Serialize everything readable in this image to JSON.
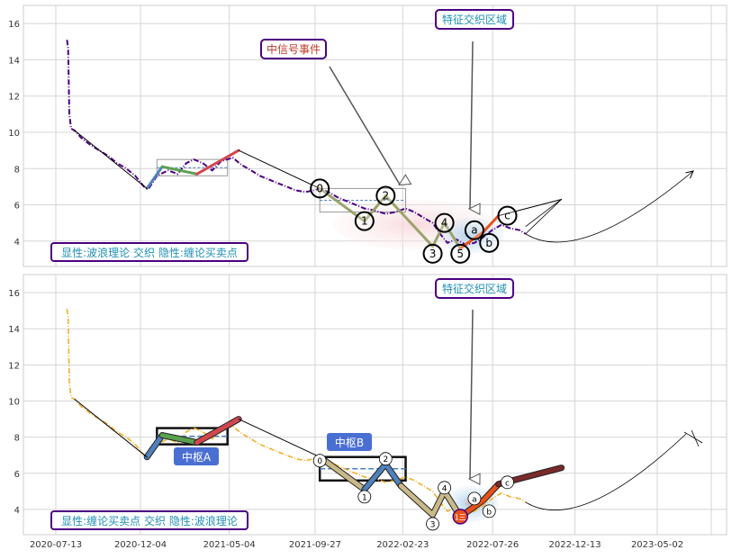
{
  "chart_data": [
    {
      "type": "line",
      "panel": "top",
      "title": "",
      "xlabel": "",
      "ylabel": "",
      "ylim": [
        2.6,
        17.0
      ],
      "yticks": [
        4,
        6,
        8,
        10,
        12,
        14,
        16
      ],
      "grid": true,
      "mode_text": "显性:波浪理论 交织 隐性:缠论买卖点",
      "annotations": [
        {
          "text": "中信号事件",
          "color": "#c0392b",
          "border": "#4b0082"
        },
        {
          "text": "特征交织区域",
          "color": "#1f8fb3",
          "border": "#4b0082"
        }
      ],
      "price_series": {
        "color": "#4b0082",
        "style": "dash-dot",
        "points": [
          [
            "2020-08-01",
            15.1
          ],
          [
            "2020-08-03",
            14.6
          ],
          [
            "2020-08-05",
            11.0
          ],
          [
            "2020-08-08",
            10.2
          ],
          [
            "2020-08-14",
            10.1
          ],
          [
            "2020-08-25",
            9.7
          ],
          [
            "2020-09-10",
            9.3
          ],
          [
            "2020-09-25",
            9.0
          ],
          [
            "2020-10-10",
            8.7
          ],
          [
            "2020-10-25",
            8.3
          ],
          [
            "2020-11-10",
            8.0
          ],
          [
            "2020-11-25",
            7.6
          ],
          [
            "2020-12-10",
            7.0
          ],
          [
            "2020-12-18",
            6.9
          ],
          [
            "2021-01-01",
            7.6
          ],
          [
            "2021-01-20",
            7.9
          ],
          [
            "2021-02-05",
            7.7
          ],
          [
            "2021-02-20",
            8.3
          ],
          [
            "2021-03-05",
            8.5
          ],
          [
            "2021-03-20",
            8.3
          ],
          [
            "2021-04-05",
            7.9
          ],
          [
            "2021-04-20",
            8.4
          ],
          [
            "2021-05-10",
            8.6
          ],
          [
            "2021-05-25",
            8.2
          ],
          [
            "2021-06-10",
            7.9
          ],
          [
            "2021-06-25",
            7.6
          ],
          [
            "2021-07-10",
            7.4
          ],
          [
            "2021-07-25",
            7.2
          ],
          [
            "2021-08-10",
            7.0
          ],
          [
            "2021-08-25",
            6.8
          ],
          [
            "2021-09-10",
            6.7
          ],
          [
            "2021-09-25",
            6.8
          ],
          [
            "2021-10-05",
            6.9
          ],
          [
            "2021-10-20",
            6.7
          ],
          [
            "2021-11-05",
            6.4
          ],
          [
            "2021-11-20",
            6.2
          ],
          [
            "2021-12-05",
            6.0
          ],
          [
            "2021-12-20",
            5.8
          ],
          [
            "2022-01-05",
            5.7
          ],
          [
            "2022-01-25",
            5.5
          ],
          [
            "2022-02-10",
            5.6
          ],
          [
            "2022-02-28",
            5.8
          ],
          [
            "2022-03-15",
            5.6
          ],
          [
            "2022-03-30",
            5.3
          ],
          [
            "2022-04-15",
            5.0
          ],
          [
            "2022-04-30",
            4.3
          ],
          [
            "2022-05-10",
            3.9
          ],
          [
            "2022-05-25",
            4.1
          ],
          [
            "2022-06-10",
            3.8
          ],
          [
            "2022-06-25",
            3.9
          ],
          [
            "2022-07-10",
            4.2
          ],
          [
            "2022-07-25",
            4.6
          ],
          [
            "2022-08-10",
            4.9
          ],
          [
            "2022-08-25",
            4.7
          ],
          [
            "2022-09-10",
            4.6
          ],
          [
            "2022-09-20",
            4.4
          ]
        ]
      },
      "pivots": [
        {
          "x1": "2021-01-01",
          "x2": "2021-05-01",
          "low": 7.6,
          "high": 8.5
        },
        {
          "x1": "2021-10-05",
          "x2": "2022-02-28",
          "low": 5.6,
          "high": 6.9
        }
      ],
      "wave_segments": [
        {
          "color": "#4f81bd",
          "points": [
            [
              "2020-12-15",
              6.9
            ],
            [
              "2021-01-10",
              8.1
            ]
          ]
        },
        {
          "color": "#59a14f",
          "points": [
            [
              "2021-01-10",
              8.1
            ],
            [
              "2021-03-10",
              7.7
            ]
          ]
        },
        {
          "color": "#d0474f",
          "points": [
            [
              "2021-03-10",
              7.7
            ],
            [
              "2021-05-20",
              9.0
            ]
          ]
        },
        {
          "color": "#000000",
          "points": [
            [
              "2020-08-14",
              10.1
            ],
            [
              "2020-12-15",
              6.9
            ]
          ]
        },
        {
          "color": "#000000",
          "points": [
            [
              "2021-05-20",
              9.0
            ],
            [
              "2021-10-05",
              6.9
            ]
          ]
        },
        {
          "color": "#9aa36b",
          "points": [
            [
              "2021-10-05",
              6.9
            ],
            [
              "2021-12-20",
              5.1
            ],
            [
              "2022-01-25",
              6.5
            ],
            [
              "2022-04-15",
              3.7
            ],
            [
              "2022-05-05",
              5.0
            ],
            [
              "2022-06-01",
              3.6
            ]
          ]
        },
        {
          "color": "#e8501a",
          "points": [
            [
              "2022-06-01",
              3.6
            ],
            [
              "2022-07-10",
              4.5
            ],
            [
              "2022-08-05",
              5.4
            ]
          ]
        },
        {
          "color": "#000000",
          "points": [
            [
              "2022-08-05",
              5.4
            ],
            [
              "2022-11-20",
              6.3
            ]
          ]
        }
      ],
      "wave_labels": [
        {
          "label": "0",
          "x": "2021-10-05",
          "y": 6.9
        },
        {
          "label": "1",
          "x": "2021-12-20",
          "y": 5.1
        },
        {
          "label": "2",
          "x": "2022-01-25",
          "y": 6.5
        },
        {
          "label": "3",
          "x": "2022-04-15",
          "y": 3.3
        },
        {
          "label": "4",
          "x": "2022-05-05",
          "y": 5.0
        },
        {
          "label": "5",
          "x": "2022-06-01",
          "y": 3.3
        },
        {
          "label": "a",
          "x": "2022-06-25",
          "y": 4.6
        },
        {
          "label": "b",
          "x": "2022-07-20",
          "y": 3.9
        },
        {
          "label": "c",
          "x": "2022-08-20",
          "y": 5.4
        }
      ]
    },
    {
      "type": "line",
      "panel": "bottom",
      "title": "",
      "xlabel": "",
      "ylabel": "",
      "ylim": [
        2.6,
        17.0
      ],
      "yticks": [
        4,
        6,
        8,
        10,
        12,
        14,
        16
      ],
      "xticks": [
        "2020-07-13",
        "2020-12-04",
        "2021-05-04",
        "2021-09-27",
        "2022-02-23",
        "2022-07-26",
        "2022-12-13",
        "2023-05-02"
      ],
      "grid": true,
      "mode_text": "显性:缠论买卖点 交织 隐性:波浪理论",
      "annotations": [
        {
          "text": "特征交织区域",
          "color": "#1f8fb3",
          "border": "#4b0082"
        }
      ],
      "pivot_labels": [
        "中枢A",
        "中枢B"
      ],
      "buy_sell_point": "1三",
      "price_series": {
        "color": "#f0b030",
        "style": "dash-dot",
        "points": [
          [
            "2020-08-01",
            15.1
          ],
          [
            "2020-08-03",
            14.6
          ],
          [
            "2020-08-05",
            11.0
          ],
          [
            "2020-08-08",
            10.2
          ],
          [
            "2020-08-14",
            10.1
          ],
          [
            "2020-08-25",
            9.7
          ],
          [
            "2020-09-10",
            9.3
          ],
          [
            "2020-09-25",
            9.0
          ],
          [
            "2020-10-10",
            8.7
          ],
          [
            "2020-10-25",
            8.3
          ],
          [
            "2020-11-10",
            8.0
          ],
          [
            "2020-11-25",
            7.6
          ],
          [
            "2020-12-10",
            7.0
          ],
          [
            "2020-12-18",
            6.9
          ],
          [
            "2021-01-01",
            7.6
          ],
          [
            "2021-01-20",
            7.9
          ],
          [
            "2021-02-05",
            7.7
          ],
          [
            "2021-02-20",
            8.3
          ],
          [
            "2021-03-05",
            8.5
          ],
          [
            "2021-03-20",
            8.3
          ],
          [
            "2021-04-05",
            7.9
          ],
          [
            "2021-04-20",
            8.4
          ],
          [
            "2021-05-10",
            8.6
          ],
          [
            "2021-05-25",
            8.2
          ],
          [
            "2021-06-10",
            7.9
          ],
          [
            "2021-06-25",
            7.6
          ],
          [
            "2021-07-10",
            7.4
          ],
          [
            "2021-07-25",
            7.2
          ],
          [
            "2021-08-10",
            7.0
          ],
          [
            "2021-08-25",
            6.8
          ],
          [
            "2021-09-10",
            6.7
          ],
          [
            "2021-09-25",
            6.8
          ],
          [
            "2021-10-05",
            6.9
          ],
          [
            "2021-10-20",
            6.7
          ],
          [
            "2021-11-05",
            6.4
          ],
          [
            "2021-11-20",
            6.2
          ],
          [
            "2021-12-05",
            6.0
          ],
          [
            "2021-12-20",
            5.8
          ],
          [
            "2022-01-05",
            5.7
          ],
          [
            "2022-01-25",
            5.5
          ],
          [
            "2022-02-10",
            5.6
          ],
          [
            "2022-02-28",
            5.8
          ],
          [
            "2022-03-15",
            5.6
          ],
          [
            "2022-03-30",
            5.3
          ],
          [
            "2022-04-15",
            5.0
          ],
          [
            "2022-04-30",
            4.3
          ],
          [
            "2022-05-10",
            3.9
          ],
          [
            "2022-05-25",
            4.1
          ],
          [
            "2022-06-10",
            3.8
          ],
          [
            "2022-06-25",
            3.9
          ],
          [
            "2022-07-10",
            4.2
          ],
          [
            "2022-07-25",
            4.6
          ],
          [
            "2022-08-10",
            4.9
          ],
          [
            "2022-08-25",
            4.7
          ],
          [
            "2022-09-10",
            4.6
          ],
          [
            "2022-09-20",
            4.4
          ]
        ]
      },
      "pivots": [
        {
          "x1": "2021-01-01",
          "x2": "2021-05-01",
          "low": 7.6,
          "high": 8.5
        },
        {
          "x1": "2021-10-05",
          "x2": "2022-02-28",
          "low": 5.6,
          "high": 6.9
        }
      ],
      "wave_segments": [
        {
          "color": "#4f81bd",
          "points": [
            [
              "2020-12-15",
              6.9
            ],
            [
              "2021-01-10",
              8.1
            ]
          ]
        },
        {
          "color": "#59a14f",
          "points": [
            [
              "2021-01-10",
              8.1
            ],
            [
              "2021-03-10",
              7.7
            ]
          ]
        },
        {
          "color": "#d0474f",
          "points": [
            [
              "2021-03-10",
              7.7
            ],
            [
              "2021-05-20",
              9.0
            ]
          ]
        },
        {
          "color": "#000000",
          "points": [
            [
              "2020-08-14",
              10.1
            ],
            [
              "2020-12-15",
              6.9
            ]
          ]
        },
        {
          "color": "#000000",
          "points": [
            [
              "2021-05-20",
              9.0
            ],
            [
              "2021-10-05",
              6.9
            ]
          ]
        },
        {
          "color": "#c9b98a",
          "points": [
            [
              "2021-10-05",
              6.9
            ],
            [
              "2021-12-20",
              5.1
            ]
          ]
        },
        {
          "color": "#4f81bd",
          "points": [
            [
              "2021-12-20",
              5.1
            ],
            [
              "2022-01-25",
              6.5
            ],
            [
              "2022-02-20",
              5.3
            ]
          ]
        },
        {
          "color": "#c9b98a",
          "points": [
            [
              "2022-02-20",
              5.3
            ],
            [
              "2022-04-15",
              3.7
            ],
            [
              "2022-05-05",
              5.0
            ],
            [
              "2022-06-01",
              3.6
            ]
          ]
        },
        {
          "color": "#e8501a",
          "points": [
            [
              "2022-06-01",
              3.6
            ],
            [
              "2022-07-10",
              4.5
            ],
            [
              "2022-08-05",
              5.4
            ]
          ]
        },
        {
          "color": "#7b2a2a",
          "points": [
            [
              "2022-08-05",
              5.4
            ],
            [
              "2022-11-20",
              6.3
            ]
          ]
        }
      ],
      "wave_labels": [
        {
          "label": "0",
          "x": "2021-10-05",
          "y": 6.7
        },
        {
          "label": "1",
          "x": "2021-12-20",
          "y": 4.7
        },
        {
          "label": "2",
          "x": "2022-01-25",
          "y": 6.8
        },
        {
          "label": "3",
          "x": "2022-04-15",
          "y": 3.2
        },
        {
          "label": "4",
          "x": "2022-05-05",
          "y": 5.2
        },
        {
          "label": "a",
          "x": "2022-06-25",
          "y": 4.6
        },
        {
          "label": "b",
          "x": "2022-07-20",
          "y": 3.9
        },
        {
          "label": "c",
          "x": "2022-08-20",
          "y": 5.5
        }
      ]
    }
  ]
}
